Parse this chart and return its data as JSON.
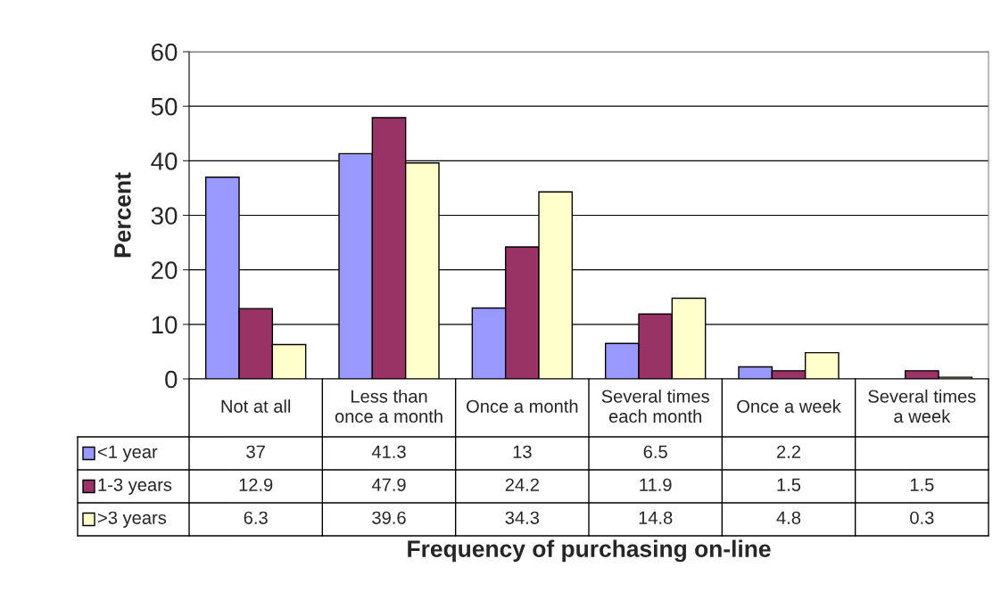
{
  "chart_data": {
    "type": "bar",
    "xlabel": "Frequency of purchasing on-line",
    "ylabel": "Percent",
    "categories": [
      "Not at all",
      "Less than\nonce a month",
      "Once a month",
      "Several times\neach month",
      "Once a week",
      "Several times\na week"
    ],
    "series": [
      {
        "name": "<1 year",
        "color": "#9999ff",
        "values": [
          37,
          41.3,
          13,
          6.5,
          2.2,
          null
        ]
      },
      {
        "name": "1-3 years",
        "color": "#993366",
        "values": [
          12.9,
          47.9,
          24.2,
          11.9,
          1.5,
          1.5
        ]
      },
      {
        "name": ">3 years",
        "color": "#ffffcc",
        "values": [
          6.3,
          39.6,
          34.3,
          14.8,
          4.8,
          0.3
        ]
      }
    ],
    "ylim": [
      0,
      60
    ],
    "yticks": [
      0,
      10,
      20,
      30,
      40,
      50,
      60
    ],
    "grid": "y",
    "legend": "bottom left",
    "data_labels": true
  }
}
